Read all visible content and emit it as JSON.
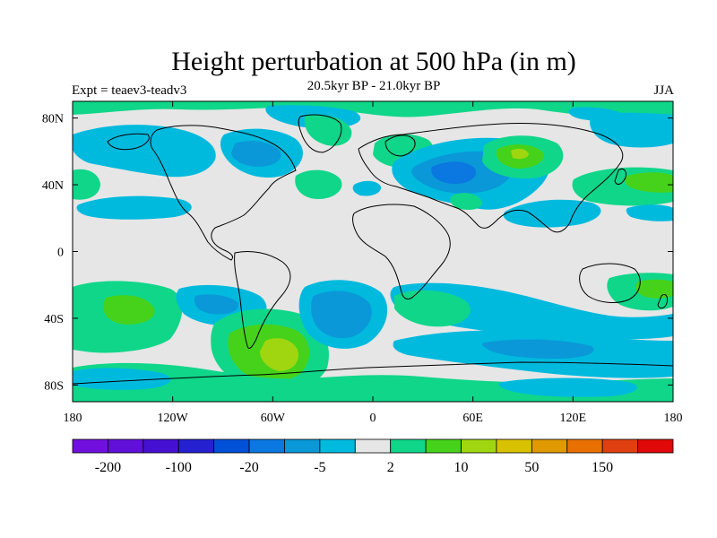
{
  "title": "Height perturbation at 500 hPa (in m)",
  "subtitle": "20.5kyr BP - 21.0kyr BP",
  "left_label": "Expt = teaev3-teadv3",
  "right_label": "JJA",
  "lat_ticks": [
    "80N",
    "40N",
    "0",
    "40S",
    "80S"
  ],
  "lon_ticks": [
    "180",
    "120W",
    "60W",
    "0",
    "60E",
    "120E",
    "180"
  ],
  "colorbar": {
    "colors": [
      "#7110DE",
      "#6010D8",
      "#4510D2",
      "#2520D0",
      "#0050D8",
      "#0A78E0",
      "#0A98D8",
      "#00BADE",
      "#E6E6E6",
      "#10D68A",
      "#46D21A",
      "#A0D610",
      "#D8C200",
      "#E09A00",
      "#E87000",
      "#E04010",
      "#E00808"
    ],
    "labels": [
      "-200",
      "-100",
      "-20",
      "-5",
      "2",
      "10",
      "50",
      "150"
    ]
  },
  "palette": {
    "background": "#E6E6E6",
    "neg_light": "#00BADE",
    "neg_mid": "#0A98D8",
    "neg_dark": "#0A78E0",
    "pos_light": "#10D68A",
    "pos_mid": "#46D21A",
    "pos_strong": "#A0D610"
  }
}
